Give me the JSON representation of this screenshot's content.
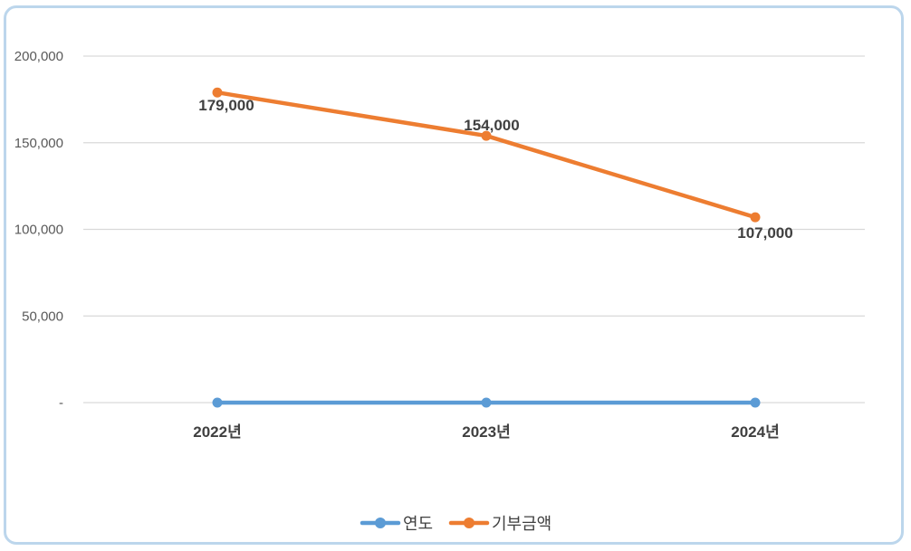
{
  "chart_data": {
    "type": "line",
    "categories": [
      "2022년",
      "2023년",
      "2024년"
    ],
    "series": [
      {
        "name": "연도",
        "values": [
          0,
          0,
          0
        ],
        "color": "#5b9bd5"
      },
      {
        "name": "기부금액",
        "values": [
          179000,
          154000,
          107000
        ],
        "color": "#ed7d31",
        "data_labels": [
          "179,000",
          "154,000",
          "107,000"
        ]
      }
    ],
    "y_ticks": [
      "-",
      "50,000",
      "100,000",
      "150,000",
      "200,000"
    ],
    "ylim": [
      0,
      200000
    ],
    "grid": true,
    "legend_position": "bottom",
    "border_color": "#bcd6ec"
  }
}
